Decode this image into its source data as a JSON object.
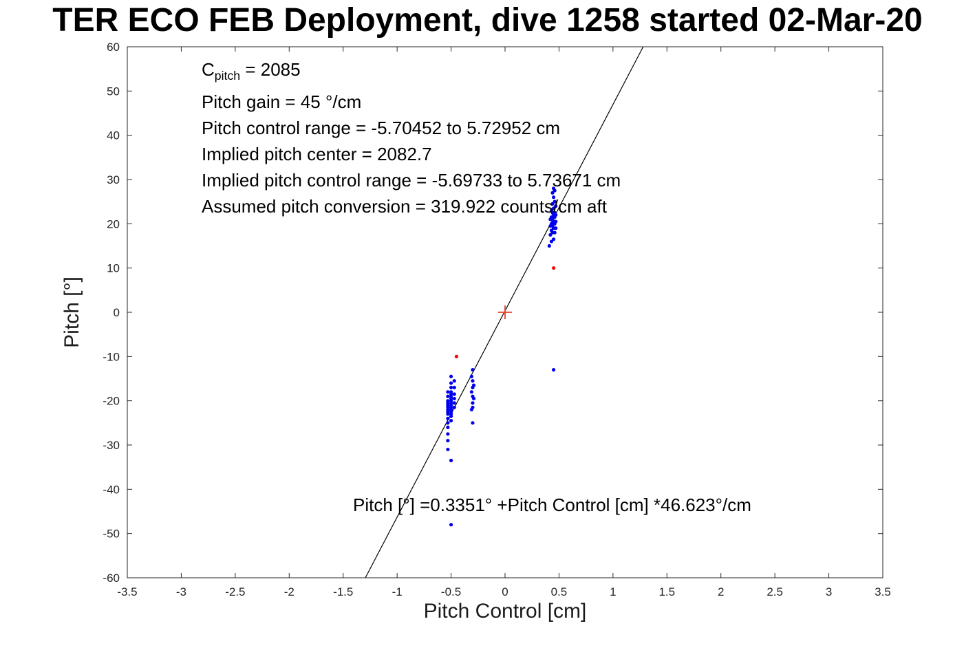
{
  "title": "TER ECO FEB Deployment, dive 1258 started 02-Mar-20",
  "annotations": {
    "c_pitch": {
      "base": "C",
      "sub": "pitch",
      "rest": " = 2085"
    },
    "lines": [
      "Pitch gain = 45 °/cm",
      "Pitch control range = -5.70452 to 5.72952 cm",
      "Implied pitch center = 2082.7",
      "Implied pitch control range = -5.69733 to 5.73671 cm",
      "Assumed pitch conversion = 319.922 counts/cm aft"
    ],
    "fit_equation": "Pitch [°] =0.3351° +Pitch Control [cm] *46.623°/cm"
  },
  "chart_data": {
    "type": "scatter",
    "title": "TER ECO FEB Deployment, dive 1258 started 02-Mar-20",
    "xlabel": "Pitch Control [cm]",
    "ylabel": "Pitch [°]",
    "xlim": [
      -3.5,
      3.5
    ],
    "ylim": [
      -60,
      60
    ],
    "grid": false,
    "legend": null,
    "xticks": [
      "-3.5",
      "-3",
      "-2.5",
      "-2",
      "-1.5",
      "-1",
      "-0.5",
      "0",
      "0.5",
      "1",
      "1.5",
      "2",
      "2.5",
      "3",
      "3.5"
    ],
    "yticks": [
      "-60",
      "-50",
      "-40",
      "-30",
      "-20",
      "-10",
      "0",
      "10",
      "20",
      "30",
      "40",
      "50",
      "60"
    ],
    "fit_line": {
      "slope": 46.623,
      "intercept": 0.3351,
      "color": "#000000"
    },
    "series": [
      {
        "name": "pitch-samples",
        "marker": "dot",
        "color": "#0000ee",
        "points": [
          [
            -0.53,
            -18
          ],
          [
            -0.53,
            -19
          ],
          [
            -0.53,
            -20
          ],
          [
            -0.53,
            -20.5
          ],
          [
            -0.53,
            -21
          ],
          [
            -0.53,
            -21.5
          ],
          [
            -0.53,
            -22
          ],
          [
            -0.53,
            -22.5
          ],
          [
            -0.53,
            -23
          ],
          [
            -0.53,
            -24
          ],
          [
            -0.53,
            -25
          ],
          [
            -0.53,
            -26
          ],
          [
            -0.53,
            -27.5
          ],
          [
            -0.53,
            -29
          ],
          [
            -0.53,
            -31
          ],
          [
            -0.5,
            -14.5
          ],
          [
            -0.5,
            -16
          ],
          [
            -0.5,
            -17
          ],
          [
            -0.5,
            -18
          ],
          [
            -0.5,
            -18.5
          ],
          [
            -0.5,
            -19
          ],
          [
            -0.5,
            -19.5
          ],
          [
            -0.5,
            -20
          ],
          [
            -0.5,
            -20.5
          ],
          [
            -0.5,
            -21
          ],
          [
            -0.5,
            -21.5
          ],
          [
            -0.5,
            -22
          ],
          [
            -0.5,
            -22.5
          ],
          [
            -0.5,
            -23
          ],
          [
            -0.5,
            -23.5
          ],
          [
            -0.5,
            -24.5
          ],
          [
            -0.5,
            -33.5
          ],
          [
            -0.5,
            -48
          ],
          [
            -0.47,
            -15.5
          ],
          [
            -0.47,
            -17
          ],
          [
            -0.47,
            -18.5
          ],
          [
            -0.47,
            -19.5
          ],
          [
            -0.47,
            -20.5
          ],
          [
            -0.47,
            -21.5
          ],
          [
            -0.3,
            -13
          ],
          [
            -0.31,
            -14.5
          ],
          [
            -0.3,
            -15.5
          ],
          [
            -0.29,
            -16.5
          ],
          [
            -0.3,
            -17
          ],
          [
            -0.31,
            -18
          ],
          [
            -0.3,
            -19
          ],
          [
            -0.29,
            -19.5
          ],
          [
            -0.3,
            -20.5
          ],
          [
            -0.3,
            -21.5
          ],
          [
            -0.31,
            -22
          ],
          [
            -0.3,
            -25
          ],
          [
            0.41,
            15
          ],
          [
            0.43,
            16
          ],
          [
            0.45,
            16.5
          ],
          [
            0.42,
            17.5
          ],
          [
            0.44,
            18
          ],
          [
            0.46,
            18
          ],
          [
            0.43,
            18.5
          ],
          [
            0.45,
            19
          ],
          [
            0.47,
            19
          ],
          [
            0.42,
            19.5
          ],
          [
            0.44,
            19.5
          ],
          [
            0.46,
            20
          ],
          [
            0.43,
            20
          ],
          [
            0.45,
            20.5
          ],
          [
            0.47,
            20.5
          ],
          [
            0.42,
            21
          ],
          [
            0.44,
            21
          ],
          [
            0.46,
            21.5
          ],
          [
            0.43,
            21.5
          ],
          [
            0.45,
            22
          ],
          [
            0.47,
            22
          ],
          [
            0.44,
            22.5
          ],
          [
            0.46,
            22.5
          ],
          [
            0.43,
            23
          ],
          [
            0.45,
            23.5
          ],
          [
            0.47,
            24
          ],
          [
            0.44,
            24.5
          ],
          [
            0.46,
            25
          ],
          [
            0.45,
            26
          ],
          [
            0.44,
            27
          ],
          [
            0.46,
            27.5
          ],
          [
            0.45,
            28
          ],
          [
            0.45,
            -13
          ]
        ]
      },
      {
        "name": "flagged-samples",
        "marker": "dot",
        "color": "#ff0000",
        "points": [
          [
            -0.45,
            -10
          ],
          [
            0.45,
            10
          ]
        ]
      },
      {
        "name": "center-marker",
        "marker": "plus",
        "color": "#e8422a",
        "points": [
          [
            0,
            0
          ]
        ]
      }
    ],
    "colors": {
      "axis": "#262626",
      "tick_label": "#262626",
      "fit_line": "#000000",
      "samples": "#0000ee",
      "flagged": "#ff0000"
    }
  }
}
